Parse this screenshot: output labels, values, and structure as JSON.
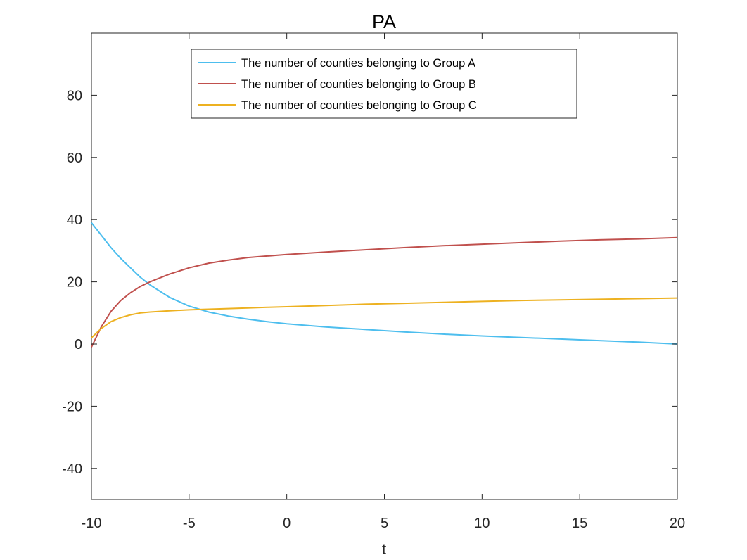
{
  "chart_data": {
    "type": "line",
    "title": "PA",
    "xlabel": "t",
    "ylabel": "",
    "xlim": [
      -10,
      20
    ],
    "ylim": [
      -50,
      100
    ],
    "xticks": [
      -10,
      -5,
      0,
      5,
      10,
      15,
      20
    ],
    "yticks": [
      -40,
      -20,
      0,
      20,
      40,
      60,
      80
    ],
    "grid": false,
    "legend_position": "top-center",
    "series": [
      {
        "name": "The number of counties belonging to Group A",
        "color": "#4DBEEE",
        "x": [
          -10,
          -9.5,
          -9,
          -8.5,
          -8,
          -7.5,
          -7,
          -6,
          -5,
          -4,
          -3,
          -2,
          -1,
          0,
          2,
          4,
          6,
          8,
          10,
          12,
          14,
          16,
          18,
          20
        ],
        "y": [
          39,
          35,
          31,
          27.5,
          24.5,
          21.5,
          19,
          15,
          12.2,
          10.3,
          9,
          8,
          7.2,
          6.5,
          5.5,
          4.7,
          3.9,
          3.2,
          2.6,
          2.1,
          1.6,
          1.1,
          0.6,
          0
        ]
      },
      {
        "name": "The number of counties belonging to Group B",
        "color": "#C0504D",
        "x": [
          -10,
          -9.5,
          -9,
          -8.5,
          -8,
          -7.5,
          -7,
          -6,
          -5,
          -4,
          -3,
          -2,
          -1,
          0,
          2,
          4,
          6,
          8,
          10,
          12,
          14,
          16,
          18,
          20
        ],
        "y": [
          -1,
          5.5,
          10.5,
          14,
          16.5,
          18.5,
          20,
          22.5,
          24.5,
          26,
          27,
          27.8,
          28.3,
          28.8,
          29.6,
          30.3,
          31,
          31.6,
          32.1,
          32.6,
          33.1,
          33.5,
          33.8,
          34.2
        ]
      },
      {
        "name": "The number of counties belonging to Group C",
        "color": "#EDB120",
        "x": [
          -10,
          -9.5,
          -9,
          -8.5,
          -8,
          -7.5,
          -7,
          -6,
          -5,
          -4,
          -3,
          -2,
          -1,
          0,
          2,
          4,
          6,
          8,
          10,
          12,
          14,
          16,
          18,
          20
        ],
        "y": [
          2,
          5,
          7.2,
          8.5,
          9.4,
          10,
          10.3,
          10.7,
          11,
          11.2,
          11.4,
          11.6,
          11.8,
          12,
          12.4,
          12.8,
          13.1,
          13.4,
          13.7,
          14,
          14.2,
          14.4,
          14.6,
          14.8
        ]
      }
    ]
  }
}
